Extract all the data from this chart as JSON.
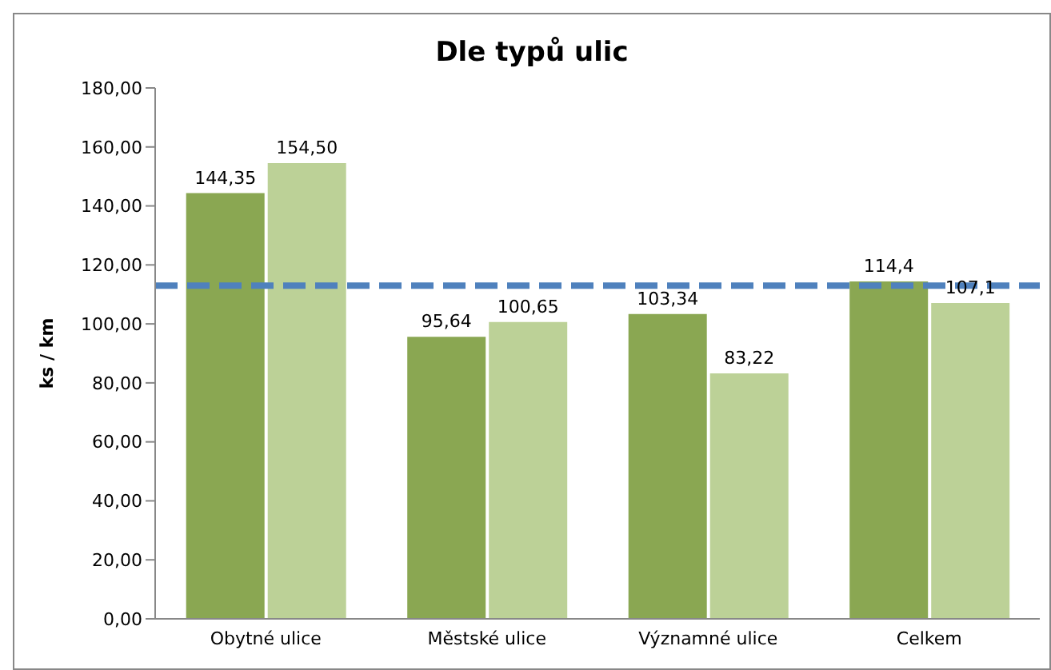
{
  "chart_data": {
    "type": "bar",
    "title": "Dle typů ulic",
    "ylabel": "ks / km",
    "categories": [
      "Obytné ulice",
      "Městské ulice",
      "Významné ulice",
      "Celkem"
    ],
    "series": [
      {
        "color": "#8aa752",
        "values": [
          144.35,
          95.64,
          103.34,
          114.4
        ],
        "value_labels": [
          "144,35",
          "95,64",
          "103,34",
          "114,4"
        ]
      },
      {
        "color": "#bcd197",
        "values": [
          154.5,
          100.65,
          83.22,
          107.1
        ],
        "value_labels": [
          "154,50",
          "100,65",
          "83,22",
          "107,1"
        ]
      }
    ],
    "ylim": [
      0,
      180
    ],
    "yticks": [
      {
        "value": 0,
        "label": "0,00"
      },
      {
        "value": 20,
        "label": "20,00"
      },
      {
        "value": 40,
        "label": "40,00"
      },
      {
        "value": 60,
        "label": "60,00"
      },
      {
        "value": 80,
        "label": "80,00"
      },
      {
        "value": 100,
        "label": "100,00"
      },
      {
        "value": 120,
        "label": "120,00"
      },
      {
        "value": 140,
        "label": "140,00"
      },
      {
        "value": 160,
        "label": "160,00"
      },
      {
        "value": 180,
        "label": "180,00"
      }
    ],
    "ref_lines": [
      {
        "axis": "y",
        "value": 113,
        "color": "#4f81bd",
        "line_style": "dashed"
      }
    ],
    "grid": false,
    "legend": false
  }
}
